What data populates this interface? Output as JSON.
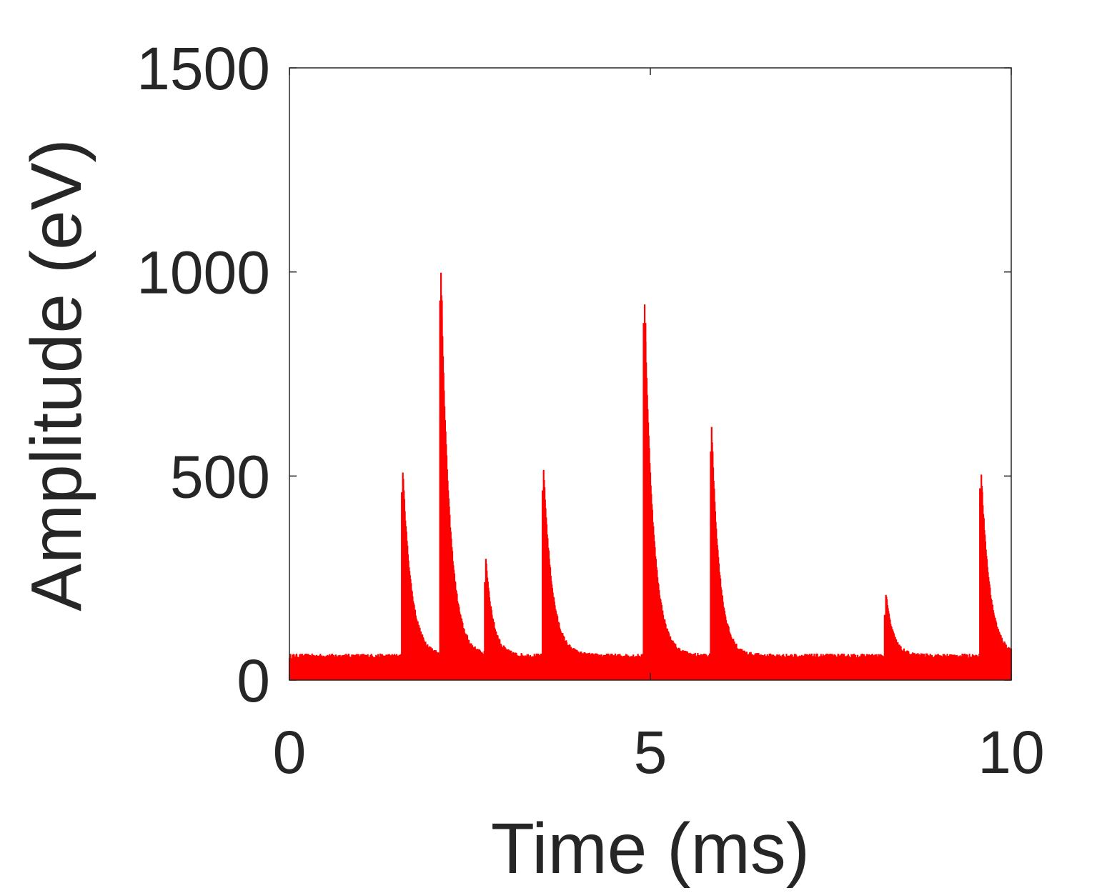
{
  "chart_data": {
    "type": "line",
    "title": "",
    "xlabel": "Time (ms)",
    "ylabel": "Amplitude (eV)",
    "xlim": [
      0,
      10
    ],
    "ylim": [
      0,
      1500
    ],
    "xticks": [
      0,
      5,
      10
    ],
    "yticks": [
      0,
      500,
      1000,
      1500
    ],
    "xtick_labels": [
      "0",
      "5",
      "10"
    ],
    "ytick_labels": [
      "0",
      "500",
      "1000",
      "1500"
    ],
    "grid": false,
    "legend": "none",
    "line_color": "#ff0000",
    "baseline": {
      "min": 0,
      "max": 65
    },
    "series": [
      {
        "color": "#ff0000",
        "pulses": [
          {
            "t": 1.57,
            "amplitude": 460,
            "decay_ms": 0.12
          },
          {
            "t": 2.1,
            "amplitude": 930,
            "decay_ms": 0.12
          },
          {
            "t": 2.72,
            "amplitude": 240,
            "decay_ms": 0.1
          },
          {
            "t": 3.52,
            "amplitude": 465,
            "decay_ms": 0.12
          },
          {
            "t": 4.92,
            "amplitude": 875,
            "decay_ms": 0.12
          },
          {
            "t": 5.85,
            "amplitude": 560,
            "decay_ms": 0.11
          },
          {
            "t": 8.26,
            "amplitude": 160,
            "decay_ms": 0.1
          },
          {
            "t": 9.58,
            "amplitude": 470,
            "decay_ms": 0.12
          }
        ]
      }
    ]
  }
}
